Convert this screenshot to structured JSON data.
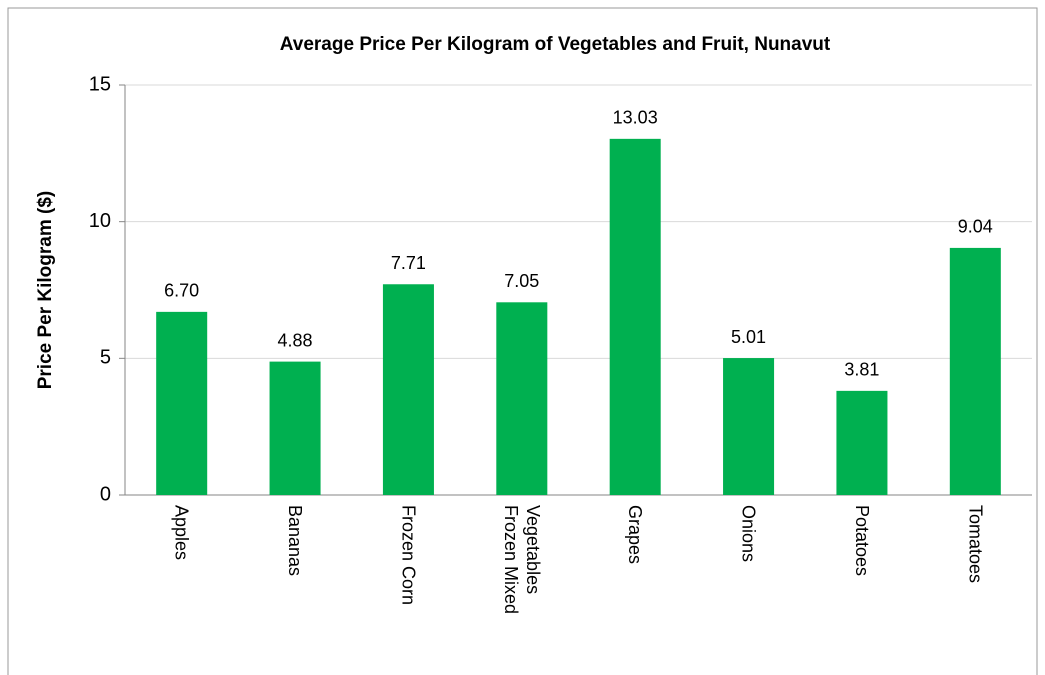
{
  "chart_data": {
    "type": "bar",
    "title": "Average Price Per Kilogram of Vegetables and Fruit, Nunavut",
    "y_label": "Price Per Kilogram ($)",
    "categories": [
      "Apples",
      "Bananas",
      "Frozen Corn",
      "Frozen Mixed Vegetables",
      "Grapes",
      "Onions",
      "Potatoes",
      "Tomatoes"
    ],
    "values": [
      6.7,
      4.88,
      7.71,
      7.05,
      13.03,
      5.01,
      3.81,
      9.04
    ],
    "value_labels": [
      "6.70",
      "4.88",
      "7.71",
      "7.05",
      "13.03",
      "5.01",
      "3.81",
      "9.04"
    ],
    "color": "#00b050",
    "ylim": [
      0,
      15
    ],
    "yticks": [
      0,
      5,
      10,
      15
    ],
    "grid": true
  }
}
